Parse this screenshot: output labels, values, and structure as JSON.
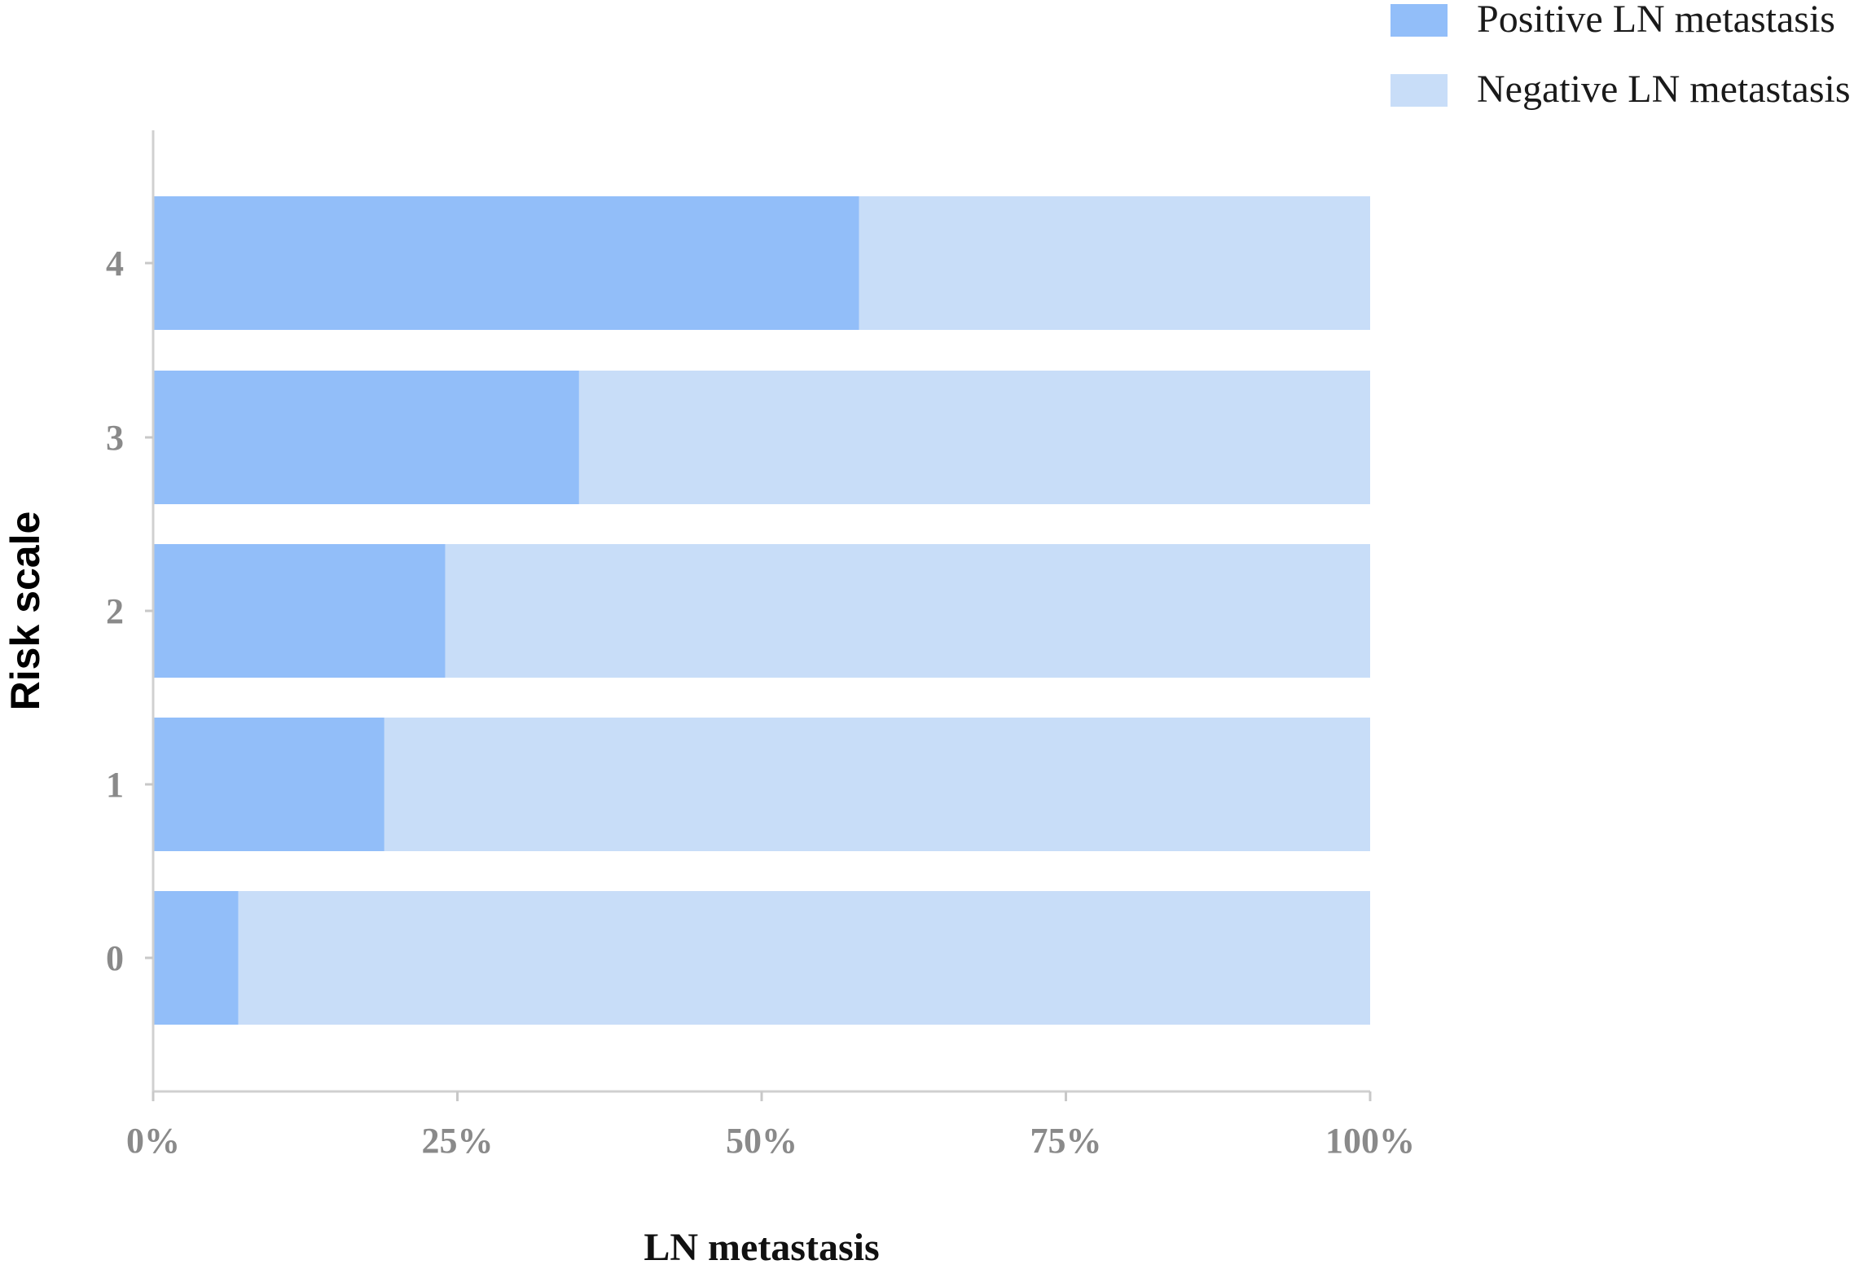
{
  "chart_data": {
    "type": "bar",
    "orientation": "horizontal",
    "stacked": true,
    "categories": [
      "0",
      "1",
      "2",
      "3",
      "4"
    ],
    "series": [
      {
        "name": "Positive LN metastasis",
        "values": [
          7,
          19,
          24,
          35,
          58
        ],
        "color": "#92bef9"
      },
      {
        "name": "Negative LN metastasis",
        "values": [
          93,
          81,
          76,
          65,
          42
        ],
        "color": "#c8ddf8"
      }
    ],
    "xlabel": "LN metastasis",
    "ylabel": "Risk scale",
    "xlim": [
      0,
      100
    ],
    "x_ticks": [
      "0%",
      "25%",
      "50%",
      "75%",
      "100%"
    ],
    "grid": false,
    "legend_position": "top-right"
  }
}
